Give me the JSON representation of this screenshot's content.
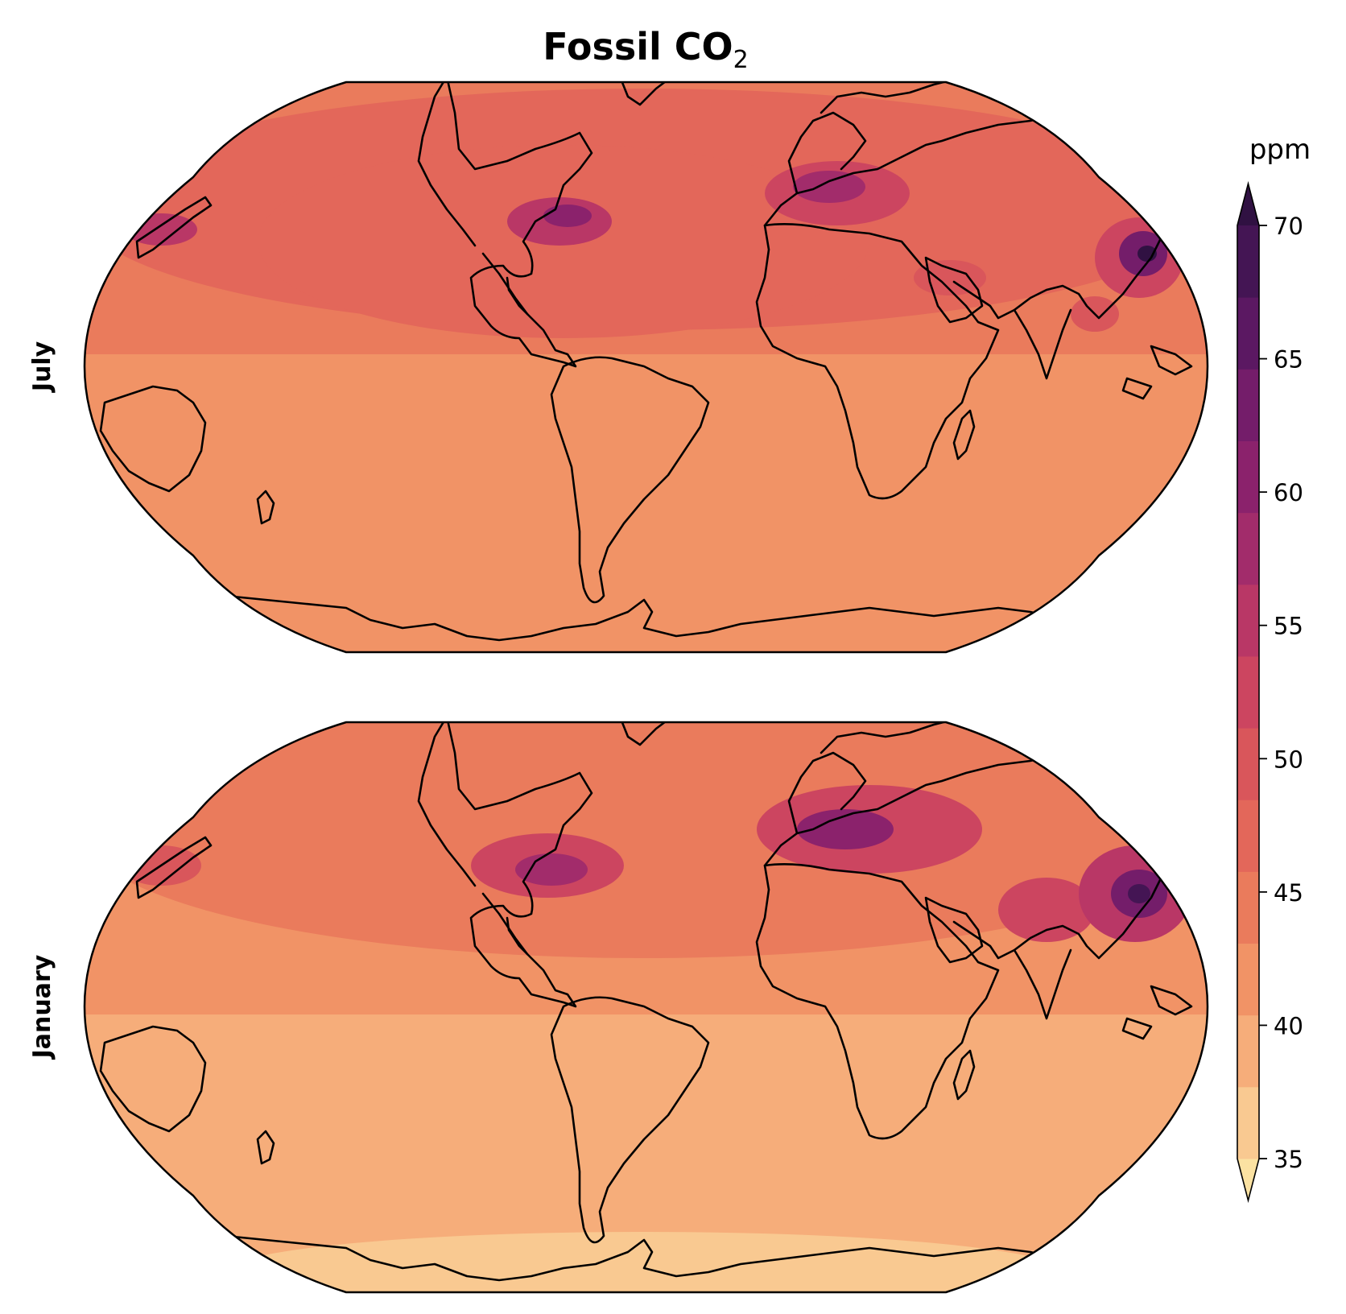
{
  "figure": {
    "title_main": "Fossil CO",
    "title_sub": "2",
    "panels": [
      {
        "label": "July"
      },
      {
        "label": "January"
      }
    ]
  },
  "colorbar": {
    "unit": "ppm",
    "min": 35,
    "max": 70,
    "levels_per_tick": 2,
    "ticks": [
      {
        "value": 35,
        "label": "35"
      },
      {
        "value": 40,
        "label": "40"
      },
      {
        "value": 45,
        "label": "45"
      },
      {
        "value": 50,
        "label": "50"
      },
      {
        "value": 55,
        "label": "55"
      },
      {
        "value": 60,
        "label": "60"
      },
      {
        "value": 65,
        "label": "65"
      },
      {
        "value": 70,
        "label": "70"
      }
    ],
    "colors": [
      "#fbe2a2",
      "#f9c991",
      "#f6ad7a",
      "#f19366",
      "#ea7b5c",
      "#e3675a",
      "#d9565b",
      "#cc4560",
      "#b93766",
      "#a22c6b",
      "#8b226c",
      "#741d6a",
      "#5b1862",
      "#441554",
      "#301142"
    ],
    "extend": "both"
  },
  "map": {
    "projection": "Robinson",
    "central_longitude": "180",
    "colormap": "magma_r"
  }
}
